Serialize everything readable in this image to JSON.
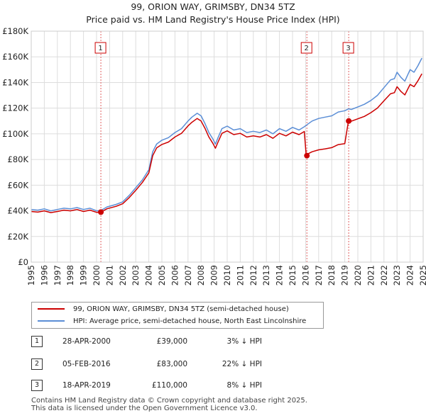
{
  "title_line1": "99, ORION WAY, GRIMSBY, DN34 5TZ",
  "title_line2": "Price paid vs. HM Land Registry's House Price Index (HPI)",
  "colors": {
    "red": "#cc0000",
    "blue": "#5b8ed6",
    "grid": "#dddddd"
  },
  "legend": {
    "red_label": "99, ORION WAY, GRIMSBY, DN34 5TZ (semi-detached house)",
    "blue_label": "HPI: Average price, semi-detached house, North East Lincolnshire"
  },
  "transactions": [
    {
      "num": "1",
      "date": "28-APR-2000",
      "price": "£39,000",
      "pct": "3% ↓ HPI"
    },
    {
      "num": "2",
      "date": "05-FEB-2016",
      "price": "£83,000",
      "pct": "22% ↓ HPI"
    },
    {
      "num": "3",
      "date": "18-APR-2019",
      "price": "£110,000",
      "pct": "8% ↓ HPI"
    }
  ],
  "footer_line1": "Contains HM Land Registry data © Crown copyright and database right 2025.",
  "footer_line2": "This data is licensed under the Open Government Licence v3.0.",
  "chart_data": {
    "type": "line",
    "title": "99, ORION WAY, GRIMSBY, DN34 5TZ",
    "subtitle": "Price paid vs. HM Land Registry's House Price Index (HPI)",
    "xlim": [
      1995,
      2025
    ],
    "ylim": [
      0,
      180000
    ],
    "y_ticks": [
      {
        "value": 0,
        "label": "£0"
      },
      {
        "value": 20000,
        "label": "£20K"
      },
      {
        "value": 40000,
        "label": "£40K"
      },
      {
        "value": 60000,
        "label": "£60K"
      },
      {
        "value": 80000,
        "label": "£80K"
      },
      {
        "value": 100000,
        "label": "£100K"
      },
      {
        "value": 120000,
        "label": "£120K"
      },
      {
        "value": 140000,
        "label": "£140K"
      },
      {
        "value": 160000,
        "label": "£160K"
      },
      {
        "value": 180000,
        "label": "£180K"
      }
    ],
    "x_ticks": [
      "1995",
      "1996",
      "1997",
      "1998",
      "1999",
      "2000",
      "2001",
      "2002",
      "2003",
      "2004",
      "2005",
      "2006",
      "2007",
      "2008",
      "2009",
      "2010",
      "2011",
      "2012",
      "2013",
      "2014",
      "2015",
      "2016",
      "2017",
      "2018",
      "2019",
      "2020",
      "2021",
      "2022",
      "2023",
      "2024",
      "2025"
    ],
    "series": [
      {
        "name": "HPI: Average price, semi-detached house, North East Lincolnshire",
        "color": "#5b8ed6",
        "x": [
          1995.0,
          1995.5,
          1996.0,
          1996.5,
          1997.0,
          1997.5,
          1998.0,
          1998.5,
          1999.0,
          1999.5,
          2000.0,
          2000.33,
          2000.8,
          2001.5,
          2002.0,
          2002.5,
          2003.0,
          2003.5,
          2004.0,
          2004.3,
          2004.6,
          2005.0,
          2005.5,
          2006.0,
          2006.5,
          2007.0,
          2007.3,
          2007.7,
          2008.0,
          2008.3,
          2008.6,
          2008.9,
          2009.1,
          2009.3,
          2009.6,
          2010.0,
          2010.5,
          2011.0,
          2011.5,
          2012.0,
          2012.5,
          2013.0,
          2013.5,
          2014.0,
          2014.5,
          2015.0,
          2015.5,
          2015.9,
          2016.1,
          2016.5,
          2017.0,
          2017.5,
          2018.0,
          2018.5,
          2019.0,
          2019.3,
          2019.5,
          2020.0,
          2020.5,
          2021.0,
          2021.5,
          2022.0,
          2022.5,
          2022.8,
          2023.0,
          2023.3,
          2023.6,
          2024.0,
          2024.3,
          2024.6,
          2024.9
        ],
        "y": [
          41000,
          40500,
          41500,
          40000,
          41000,
          42000,
          41500,
          42500,
          41000,
          42000,
          40000,
          40300,
          43000,
          45000,
          47000,
          52000,
          58000,
          64000,
          72000,
          86000,
          92000,
          95000,
          97000,
          101000,
          104000,
          110000,
          113000,
          116000,
          114000,
          108000,
          101000,
          96000,
          92000,
          97000,
          104000,
          106000,
          103000,
          104000,
          101000,
          102000,
          101000,
          103000,
          100000,
          104000,
          102000,
          105000,
          103000,
          105500,
          107000,
          110000,
          112000,
          113000,
          114000,
          117000,
          118000,
          119500,
          119000,
          121000,
          123000,
          126000,
          130000,
          136000,
          142000,
          143000,
          148000,
          144000,
          141000,
          150000,
          148000,
          153000,
          159000
        ]
      },
      {
        "name": "99, ORION WAY, GRIMSBY, DN34 5TZ (semi-detached house)",
        "color": "#cc0000",
        "x": [
          1995.0,
          1995.5,
          1996.0,
          1996.5,
          1997.0,
          1997.5,
          1998.0,
          1998.5,
          1999.0,
          1999.5,
          2000.0,
          2000.33,
          2000.8,
          2001.5,
          2002.0,
          2002.5,
          2003.0,
          2003.5,
          2004.0,
          2004.3,
          2004.6,
          2005.0,
          2005.5,
          2006.0,
          2006.5,
          2007.0,
          2007.3,
          2007.7,
          2008.0,
          2008.3,
          2008.6,
          2008.9,
          2009.1,
          2009.3,
          2009.6,
          2010.0,
          2010.5,
          2011.0,
          2011.5,
          2012.0,
          2012.5,
          2013.0,
          2013.5,
          2014.0,
          2014.5,
          2015.0,
          2015.5,
          2015.9,
          2016.05,
          2016.1,
          2016.5,
          2017.0,
          2017.5,
          2018.0,
          2018.5,
          2019.0,
          2019.28,
          2019.3,
          2019.5,
          2020.0,
          2020.5,
          2021.0,
          2021.5,
          2022.0,
          2022.5,
          2022.8,
          2023.0,
          2023.3,
          2023.6,
          2024.0,
          2024.3,
          2024.6,
          2024.9
        ],
        "y": [
          39500,
          39000,
          40000,
          38600,
          39500,
          40500,
          40000,
          41000,
          39500,
          40500,
          38800,
          39000,
          41600,
          43500,
          45500,
          50300,
          56000,
          62000,
          69500,
          83000,
          89000,
          91700,
          93600,
          97500,
          100400,
          106200,
          109000,
          112000,
          110000,
          104300,
          97500,
          92600,
          88800,
          93600,
          100400,
          102300,
          99400,
          100400,
          97500,
          98400,
          97500,
          99400,
          96500,
          100400,
          98400,
          101300,
          99400,
          101800,
          83000,
          84000,
          86000,
          87500,
          88300,
          89200,
          91600,
          92300,
          110000,
          110100,
          109800,
          111700,
          113600,
          116500,
          120100,
          125700,
          131200,
          132100,
          136700,
          133000,
          130300,
          138500,
          136700,
          141300,
          146800
        ]
      }
    ],
    "sales": [
      {
        "label": "1",
        "x": 2000.33,
        "y": 39000
      },
      {
        "label": "2",
        "x": 2016.1,
        "y": 83000
      },
      {
        "label": "3",
        "x": 2019.3,
        "y": 110000
      }
    ]
  }
}
